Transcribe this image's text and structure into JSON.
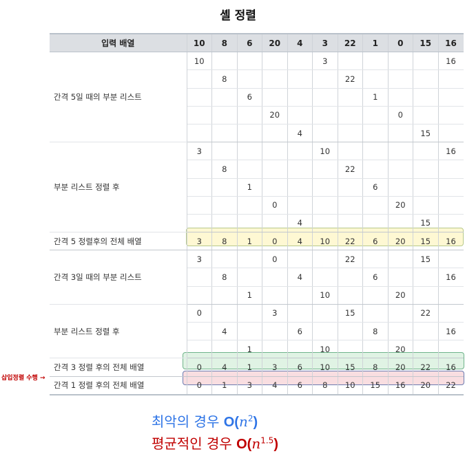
{
  "title": "셸 정렬",
  "header": {
    "label": "입력 배열",
    "values": [
      "10",
      "8",
      "6",
      "20",
      "4",
      "3",
      "22",
      "1",
      "0",
      "15",
      "16"
    ]
  },
  "groups": [
    {
      "label": "간격 5일 때의 부분 리스트",
      "rows": [
        [
          "10",
          "",
          "",
          "",
          "",
          "3",
          "",
          "",
          "",
          "",
          "16"
        ],
        [
          "",
          "8",
          "",
          "",
          "",
          "",
          "22",
          "",
          "",
          "",
          ""
        ],
        [
          "",
          "",
          "6",
          "",
          "",
          "",
          "",
          "1",
          "",
          "",
          ""
        ],
        [
          "",
          "",
          "",
          "20",
          "",
          "",
          "",
          "",
          "0",
          "",
          ""
        ],
        [
          "",
          "",
          "",
          "",
          "4",
          "",
          "",
          "",
          "",
          "15",
          ""
        ]
      ]
    },
    {
      "label": "부분 리스트 정렬 후",
      "rows": [
        [
          "3",
          "",
          "",
          "",
          "",
          "10",
          "",
          "",
          "",
          "",
          "16"
        ],
        [
          "",
          "8",
          "",
          "",
          "",
          "",
          "22",
          "",
          "",
          "",
          ""
        ],
        [
          "",
          "",
          "1",
          "",
          "",
          "",
          "",
          "6",
          "",
          "",
          ""
        ],
        [
          "",
          "",
          "",
          "0",
          "",
          "",
          "",
          "",
          "20",
          "",
          ""
        ],
        [
          "",
          "",
          "",
          "",
          "4",
          "",
          "",
          "",
          "",
          "15",
          ""
        ]
      ]
    },
    {
      "label": "간격 5 정렬후의 전체 배열",
      "rows": [
        [
          "3",
          "8",
          "1",
          "0",
          "4",
          "10",
          "22",
          "6",
          "20",
          "15",
          "16"
        ]
      ]
    },
    {
      "label": "간격 3일 때의 부분 리스트",
      "rows": [
        [
          "3",
          "",
          "",
          "0",
          "",
          "",
          "22",
          "",
          "",
          "15",
          ""
        ],
        [
          "",
          "8",
          "",
          "",
          "4",
          "",
          "",
          "6",
          "",
          "",
          "16"
        ],
        [
          "",
          "",
          "1",
          "",
          "",
          "10",
          "",
          "",
          "20",
          "",
          ""
        ]
      ]
    },
    {
      "label": "부분 리스트 정렬 후",
      "rows": [
        [
          "0",
          "",
          "",
          "3",
          "",
          "",
          "15",
          "",
          "",
          "22",
          ""
        ],
        [
          "",
          "4",
          "",
          "",
          "6",
          "",
          "",
          "8",
          "",
          "",
          "16"
        ],
        [
          "",
          "",
          "1",
          "",
          "",
          "10",
          "",
          "",
          "20",
          "",
          ""
        ]
      ]
    },
    {
      "label": "간격 3 정렬 후의 전체 배열",
      "rows": [
        [
          "0",
          "4",
          "1",
          "3",
          "6",
          "10",
          "15",
          "8",
          "20",
          "22",
          "16"
        ]
      ]
    },
    {
      "label": "간격 1 정렬 후의 전체 배열",
      "rows": [
        [
          "0",
          "1",
          "3",
          "4",
          "6",
          "8",
          "10",
          "15",
          "16",
          "20",
          "22"
        ]
      ]
    }
  ],
  "note": "삽입정렬 수행 →",
  "complexity": {
    "worst_label": "최악의 경우",
    "worst_big_o": "O(",
    "worst_var": "n",
    "worst_exp": "2",
    "worst_close": ")",
    "avg_label": "평균적인 경우",
    "avg_big_o": "O(",
    "avg_var": "n",
    "avg_exp": "1.5",
    "avg_close": ")"
  },
  "colors": {
    "worst": "#2e74e6",
    "avg": "#c00000",
    "highlight_yellow": "#fdf6c4",
    "highlight_green": "#d6efdb",
    "highlight_red": "#f8d6da"
  }
}
